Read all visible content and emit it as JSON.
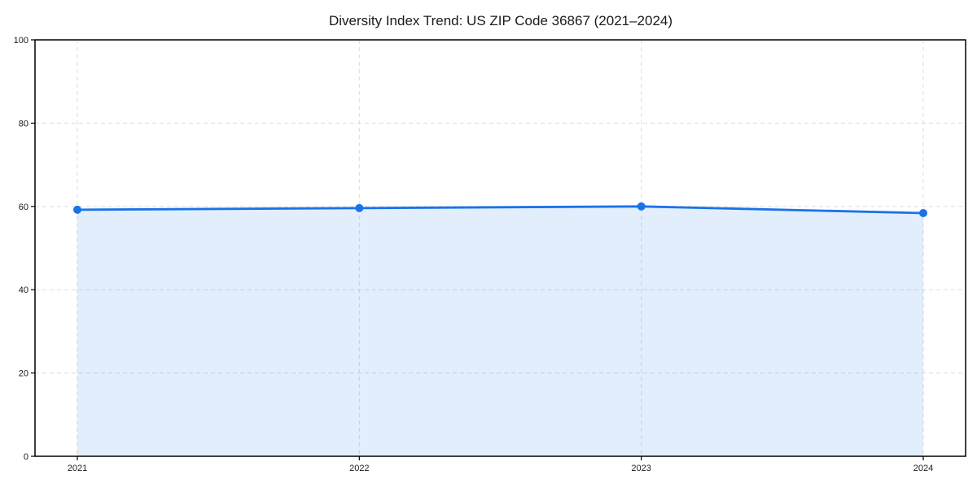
{
  "chart_data": {
    "type": "area",
    "title": "Diversity Index Trend: US ZIP Code 36867 (2021–2024)",
    "categories": [
      "2021",
      "2022",
      "2023",
      "2024"
    ],
    "series": [
      {
        "name": "Diversity Index",
        "values": [
          59.2,
          59.6,
          60.0,
          58.4
        ]
      }
    ],
    "xlabel": "",
    "ylabel": "",
    "ylim": [
      0,
      100
    ],
    "yticks": [
      0,
      20,
      40,
      60,
      80,
      100
    ],
    "grid": true,
    "grid_style": "dashed",
    "legend": false,
    "colors": {
      "line": "#1a73e8",
      "fill": "#1a73e8",
      "fill_opacity": 0.12,
      "grid": "#dcdcdc",
      "frame": "#000000",
      "text": "#1a1a1a",
      "background": "#ffffff"
    }
  }
}
